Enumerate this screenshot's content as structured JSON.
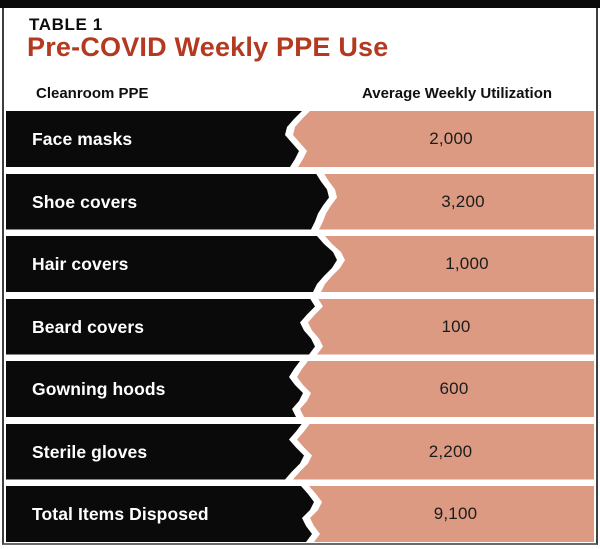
{
  "figure": {
    "kicker": "TABLE 1",
    "title": "Pre-COVID Weekly PPE Use"
  },
  "table": {
    "columns": [
      "Cleanroom PPE",
      "Average Weekly Utilization"
    ],
    "rows": [
      {
        "label": "Face masks",
        "value": "2,000"
      },
      {
        "label": "Shoe covers",
        "value": "3,200"
      },
      {
        "label": "Hair covers",
        "value": "1,000"
      },
      {
        "label": "Beard covers",
        "value": "100"
      },
      {
        "label": "Gowning hoods",
        "value": "600"
      },
      {
        "label": "Sterile gloves",
        "value": "2,200"
      },
      {
        "label": "Total Items Disposed",
        "value": "9,100"
      }
    ]
  },
  "colors": {
    "title_red": "#b33a21",
    "bar_black": "#0a0a0a",
    "bar_salmon": "#dd9a83"
  },
  "chart_data": {
    "type": "table",
    "title": "Pre-COVID Weekly PPE Use",
    "kicker": "TABLE 1",
    "columns": [
      "Cleanroom PPE",
      "Average Weekly Utilization"
    ],
    "rows": [
      [
        "Face masks",
        2000
      ],
      [
        "Shoe covers",
        3200
      ],
      [
        "Hair covers",
        1000
      ],
      [
        "Beard covers",
        100
      ],
      [
        "Gowning hoods",
        600
      ],
      [
        "Sterile gloves",
        2200
      ],
      [
        "Total Items Disposed",
        9100
      ]
    ]
  }
}
